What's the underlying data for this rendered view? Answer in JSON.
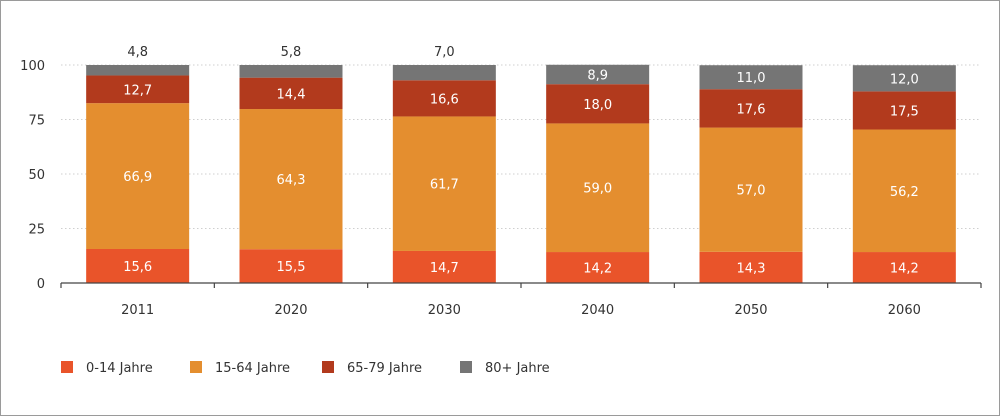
{
  "chart_data": {
    "type": "bar",
    "stacked": true,
    "title": "",
    "xlabel": "",
    "ylabel": "",
    "ylim": [
      0,
      100
    ],
    "yticks": [
      "0",
      "25",
      "50",
      "75",
      "100"
    ],
    "ytick_values": [
      0,
      25,
      50,
      75,
      100
    ],
    "grid": true,
    "legend_position": "bottom-left",
    "categories": [
      "2011",
      "2020",
      "2030",
      "2040",
      "2050",
      "2060"
    ],
    "series": [
      {
        "name": "0-14 Jahre",
        "color": "#e9542a",
        "values": [
          15.6,
          15.5,
          14.7,
          14.2,
          14.3,
          14.2
        ],
        "labels": [
          "15,6",
          "15,5",
          "14,7",
          "14,2",
          "14,3",
          "14,2"
        ]
      },
      {
        "name": "15-64 Jahre",
        "color": "#e48e2f",
        "values": [
          66.9,
          64.3,
          61.7,
          59.0,
          57.0,
          56.2
        ],
        "labels": [
          "66,9",
          "64,3",
          "61,7",
          "59,0",
          "57,0",
          "56,2"
        ]
      },
      {
        "name": "65-79 Jahre",
        "color": "#b23a1d",
        "values": [
          12.7,
          14.4,
          16.6,
          18.0,
          17.6,
          17.5
        ],
        "labels": [
          "12,7",
          "14,4",
          "16,6",
          "18,0",
          "17,6",
          "17,5"
        ]
      },
      {
        "name": "80+ Jahre",
        "color": "#757575",
        "values": [
          4.8,
          5.8,
          7.0,
          8.9,
          11.0,
          12.0
        ],
        "labels": [
          "4,8",
          "5,8",
          "7,0",
          "8,9",
          "11,0",
          "12,0"
        ],
        "label_position": [
          "above",
          "above",
          "above",
          "inside",
          "inside",
          "inside"
        ]
      }
    ]
  }
}
